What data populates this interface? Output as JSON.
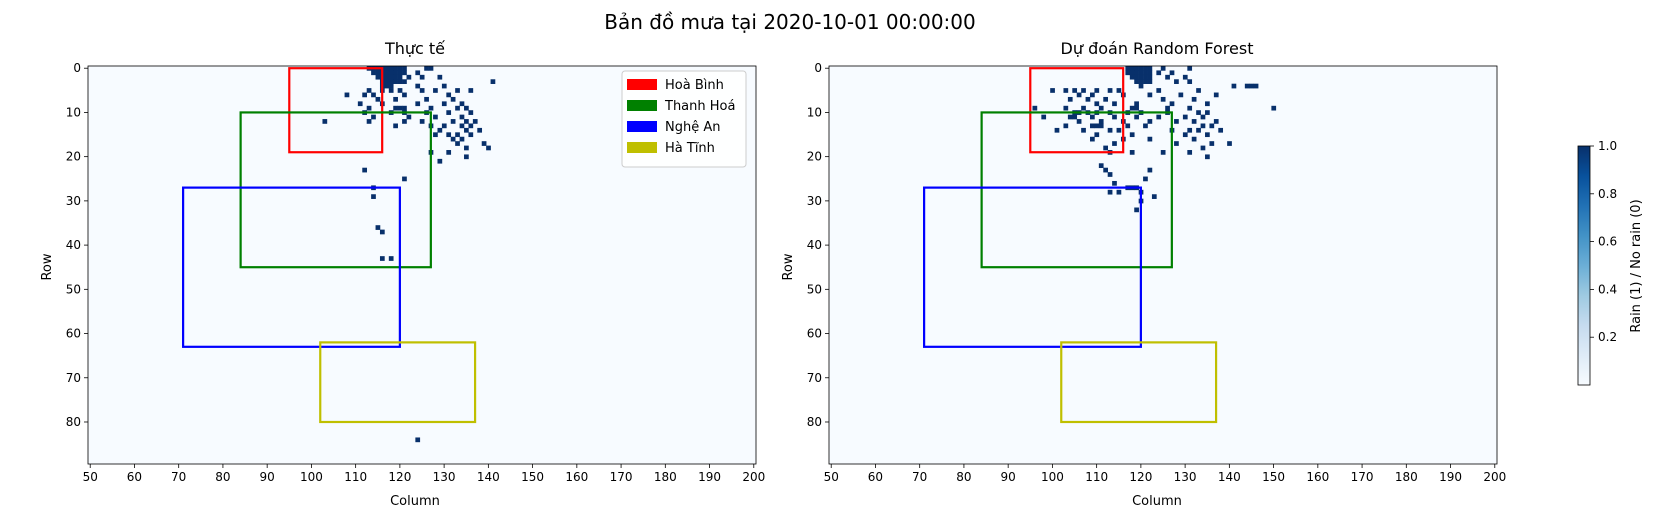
{
  "figure": {
    "suptitle": "Bản đồ mưa tại 2020-10-01 00:00:00"
  },
  "colors": {
    "background_cell": "#f7fbff",
    "rain_cell": "#08306b",
    "regions": {
      "Hoà Bình": "#ff0000",
      "Thanh Hoá": "#008000",
      "Nghệ An": "#0000ff",
      "Hà Tĩnh": "#bfbf00"
    }
  },
  "chart_data": [
    {
      "type": "heatmap",
      "title": "Thực tế",
      "xlabel": "Column",
      "ylabel": "Row",
      "xlim": [
        49.5,
        200.5
      ],
      "ylim": [
        89.5,
        -0.5
      ],
      "xticks": [
        50,
        60,
        70,
        80,
        90,
        100,
        110,
        120,
        130,
        140,
        150,
        160,
        170,
        180,
        190,
        200
      ],
      "yticks": [
        0,
        10,
        20,
        30,
        40,
        50,
        60,
        70,
        80
      ],
      "xtick_labels": [
        "50",
        "60",
        "70",
        "80",
        "90",
        "100",
        "110",
        "120",
        "130",
        "140",
        "150",
        "160",
        "170",
        "180",
        "190",
        "200"
      ],
      "ytick_labels": [
        "0",
        "10",
        "20",
        "30",
        "40",
        "50",
        "60",
        "70",
        "80"
      ],
      "legend": {
        "placement": "upper right",
        "entries": [
          "Hoà Bình",
          "Thanh Hoá",
          "Nghệ An",
          "Hà Tĩnh"
        ]
      },
      "regions": [
        {
          "name": "Hoà Bình",
          "col_range": [
            95,
            116
          ],
          "row_range": [
            0,
            19
          ]
        },
        {
          "name": "Thanh Hoá",
          "col_range": [
            84,
            127
          ],
          "row_range": [
            10,
            45
          ]
        },
        {
          "name": "Nghệ An",
          "col_range": [
            71,
            120
          ],
          "row_range": [
            27,
            63
          ]
        },
        {
          "name": "Hà Tĩnh",
          "col_range": [
            102,
            137
          ],
          "row_range": [
            62,
            80
          ]
        }
      ],
      "rain_cells": [
        [
          113,
          0
        ],
        [
          114,
          0
        ],
        [
          115,
          0
        ],
        [
          116,
          0
        ],
        [
          117,
          0
        ],
        [
          118,
          0
        ],
        [
          119,
          0
        ],
        [
          120,
          0
        ],
        [
          121,
          0
        ],
        [
          126,
          0
        ],
        [
          127,
          0
        ],
        [
          114,
          1
        ],
        [
          115,
          1
        ],
        [
          116,
          1
        ],
        [
          117,
          1
        ],
        [
          118,
          1
        ],
        [
          119,
          1
        ],
        [
          120,
          1
        ],
        [
          121,
          1
        ],
        [
          124,
          1
        ],
        [
          115,
          2
        ],
        [
          116,
          2
        ],
        [
          117,
          2
        ],
        [
          118,
          2
        ],
        [
          119,
          2
        ],
        [
          120,
          2
        ],
        [
          122,
          2
        ],
        [
          125,
          2
        ],
        [
          129,
          2
        ],
        [
          116,
          3
        ],
        [
          117,
          3
        ],
        [
          118,
          3
        ],
        [
          119,
          3
        ],
        [
          120,
          3
        ],
        [
          121,
          3
        ],
        [
          141,
          3
        ],
        [
          116,
          4
        ],
        [
          117,
          4
        ],
        [
          118,
          4
        ],
        [
          124,
          4
        ],
        [
          130,
          4
        ],
        [
          113,
          5
        ],
        [
          116,
          5
        ],
        [
          118,
          5
        ],
        [
          120,
          5
        ],
        [
          125,
          5
        ],
        [
          128,
          5
        ],
        [
          133,
          5
        ],
        [
          136,
          5
        ],
        [
          108,
          6
        ],
        [
          112,
          6
        ],
        [
          114,
          6
        ],
        [
          121,
          6
        ],
        [
          131,
          6
        ],
        [
          115,
          7
        ],
        [
          119,
          7
        ],
        [
          126,
          7
        ],
        [
          132,
          7
        ],
        [
          111,
          8
        ],
        [
          116,
          8
        ],
        [
          124,
          8
        ],
        [
          130,
          8
        ],
        [
          134,
          8
        ],
        [
          113,
          9
        ],
        [
          119,
          9
        ],
        [
          120,
          9
        ],
        [
          121,
          9
        ],
        [
          127,
          9
        ],
        [
          133,
          9
        ],
        [
          135,
          9
        ],
        [
          112,
          10
        ],
        [
          118,
          10
        ],
        [
          121,
          10
        ],
        [
          126,
          10
        ],
        [
          131,
          10
        ],
        [
          136,
          10
        ],
        [
          114,
          11
        ],
        [
          122,
          11
        ],
        [
          128,
          11
        ],
        [
          134,
          11
        ],
        [
          103,
          12
        ],
        [
          113,
          12
        ],
        [
          121,
          12
        ],
        [
          125,
          12
        ],
        [
          132,
          12
        ],
        [
          135,
          12
        ],
        [
          137,
          12
        ],
        [
          119,
          13
        ],
        [
          127,
          13
        ],
        [
          130,
          13
        ],
        [
          134,
          13
        ],
        [
          136,
          13
        ],
        [
          129,
          14
        ],
        [
          135,
          14
        ],
        [
          138,
          14
        ],
        [
          128,
          15
        ],
        [
          131,
          15
        ],
        [
          133,
          15
        ],
        [
          136,
          15
        ],
        [
          132,
          16
        ],
        [
          134,
          16
        ],
        [
          133,
          17
        ],
        [
          139,
          17
        ],
        [
          135,
          18
        ],
        [
          140,
          18
        ],
        [
          127,
          19
        ],
        [
          131,
          19
        ],
        [
          135,
          20
        ],
        [
          129,
          21
        ],
        [
          112,
          23
        ],
        [
          121,
          25
        ],
        [
          114,
          27
        ],
        [
          114,
          29
        ],
        [
          115,
          36
        ],
        [
          116,
          37
        ],
        [
          116,
          43
        ],
        [
          118,
          43
        ],
        [
          124,
          84
        ]
      ]
    },
    {
      "type": "heatmap",
      "title": "Dự đoán Random Forest",
      "xlabel": "Column",
      "ylabel": "Row",
      "xlim": [
        49.5,
        200.5
      ],
      "ylim": [
        89.5,
        -0.5
      ],
      "xticks": [
        50,
        60,
        70,
        80,
        90,
        100,
        110,
        120,
        130,
        140,
        150,
        160,
        170,
        180,
        190,
        200
      ],
      "yticks": [
        0,
        10,
        20,
        30,
        40,
        50,
        60,
        70,
        80
      ],
      "xtick_labels": [
        "50",
        "60",
        "70",
        "80",
        "90",
        "100",
        "110",
        "120",
        "130",
        "140",
        "150",
        "160",
        "170",
        "180",
        "190",
        "200"
      ],
      "ytick_labels": [
        "0",
        "10",
        "20",
        "30",
        "40",
        "50",
        "60",
        "70",
        "80"
      ],
      "regions": [
        {
          "name": "Hoà Bình",
          "col_range": [
            95,
            116
          ],
          "row_range": [
            0,
            19
          ]
        },
        {
          "name": "Thanh Hoá",
          "col_range": [
            84,
            127
          ],
          "row_range": [
            10,
            45
          ]
        },
        {
          "name": "Nghệ An",
          "col_range": [
            71,
            120
          ],
          "row_range": [
            27,
            63
          ]
        },
        {
          "name": "Hà Tĩnh",
          "col_range": [
            102,
            137
          ],
          "row_range": [
            62,
            80
          ]
        }
      ],
      "rain_cells": [
        [
          117,
          0
        ],
        [
          118,
          0
        ],
        [
          119,
          0
        ],
        [
          120,
          0
        ],
        [
          121,
          0
        ],
        [
          122,
          0
        ],
        [
          125,
          0
        ],
        [
          131,
          0
        ],
        [
          117,
          1
        ],
        [
          118,
          1
        ],
        [
          119,
          1
        ],
        [
          120,
          1
        ],
        [
          121,
          1
        ],
        [
          122,
          1
        ],
        [
          124,
          1
        ],
        [
          127,
          1
        ],
        [
          118,
          2
        ],
        [
          119,
          2
        ],
        [
          120,
          2
        ],
        [
          121,
          2
        ],
        [
          122,
          2
        ],
        [
          126,
          2
        ],
        [
          130,
          2
        ],
        [
          119,
          3
        ],
        [
          120,
          3
        ],
        [
          121,
          3
        ],
        [
          122,
          3
        ],
        [
          128,
          3
        ],
        [
          131,
          3
        ],
        [
          120,
          4
        ],
        [
          141,
          4
        ],
        [
          144,
          4
        ],
        [
          145,
          4
        ],
        [
          146,
          4
        ],
        [
          100,
          5
        ],
        [
          103,
          5
        ],
        [
          105,
          5
        ],
        [
          107,
          5
        ],
        [
          110,
          5
        ],
        [
          113,
          5
        ],
        [
          115,
          5
        ],
        [
          124,
          5
        ],
        [
          133,
          5
        ],
        [
          106,
          6
        ],
        [
          109,
          6
        ],
        [
          116,
          6
        ],
        [
          122,
          6
        ],
        [
          129,
          6
        ],
        [
          137,
          6
        ],
        [
          104,
          7
        ],
        [
          108,
          7
        ],
        [
          112,
          7
        ],
        [
          125,
          7
        ],
        [
          132,
          7
        ],
        [
          110,
          8
        ],
        [
          114,
          8
        ],
        [
          119,
          8
        ],
        [
          127,
          8
        ],
        [
          135,
          8
        ],
        [
          96,
          9
        ],
        [
          103,
          9
        ],
        [
          107,
          9
        ],
        [
          111,
          9
        ],
        [
          118,
          9
        ],
        [
          119,
          9
        ],
        [
          126,
          9
        ],
        [
          131,
          9
        ],
        [
          150,
          9
        ],
        [
          105,
          10
        ],
        [
          106,
          10
        ],
        [
          108,
          10
        ],
        [
          110,
          10
        ],
        [
          113,
          10
        ],
        [
          117,
          10
        ],
        [
          120,
          10
        ],
        [
          126,
          10
        ],
        [
          133,
          10
        ],
        [
          135,
          10
        ],
        [
          98,
          11
        ],
        [
          104,
          11
        ],
        [
          105,
          11
        ],
        [
          109,
          11
        ],
        [
          114,
          11
        ],
        [
          119,
          11
        ],
        [
          124,
          11
        ],
        [
          130,
          11
        ],
        [
          134,
          11
        ],
        [
          106,
          12
        ],
        [
          111,
          12
        ],
        [
          116,
          12
        ],
        [
          122,
          12
        ],
        [
          128,
          12
        ],
        [
          132,
          12
        ],
        [
          137,
          12
        ],
        [
          103,
          13
        ],
        [
          109,
          13
        ],
        [
          110,
          13
        ],
        [
          111,
          13
        ],
        [
          117,
          13
        ],
        [
          121,
          13
        ],
        [
          134,
          13
        ],
        [
          136,
          13
        ],
        [
          101,
          14
        ],
        [
          107,
          14
        ],
        [
          113,
          14
        ],
        [
          115,
          14
        ],
        [
          127,
          14
        ],
        [
          131,
          14
        ],
        [
          133,
          14
        ],
        [
          138,
          14
        ],
        [
          110,
          15
        ],
        [
          118,
          15
        ],
        [
          130,
          15
        ],
        [
          135,
          15
        ],
        [
          109,
          16
        ],
        [
          116,
          16
        ],
        [
          122,
          16
        ],
        [
          132,
          16
        ],
        [
          114,
          17
        ],
        [
          128,
          17
        ],
        [
          136,
          17
        ],
        [
          140,
          17
        ],
        [
          112,
          18
        ],
        [
          134,
          18
        ],
        [
          113,
          19
        ],
        [
          118,
          19
        ],
        [
          125,
          19
        ],
        [
          131,
          19
        ],
        [
          135,
          20
        ],
        [
          111,
          22
        ],
        [
          112,
          23
        ],
        [
          122,
          23
        ],
        [
          113,
          24
        ],
        [
          121,
          25
        ],
        [
          114,
          26
        ],
        [
          117,
          27
        ],
        [
          118,
          27
        ],
        [
          119,
          27
        ],
        [
          113,
          28
        ],
        [
          115,
          28
        ],
        [
          120,
          28
        ],
        [
          123,
          29
        ],
        [
          120,
          30
        ],
        [
          119,
          32
        ]
      ]
    }
  ],
  "colorbar": {
    "label": "Rain (1) / No rain (0)",
    "range": [
      0,
      1
    ],
    "ticks": [
      0.2,
      0.4,
      0.6,
      0.8,
      1.0
    ],
    "tick_labels": [
      "0.2",
      "0.4",
      "0.6",
      "0.8",
      "1.0"
    ]
  }
}
